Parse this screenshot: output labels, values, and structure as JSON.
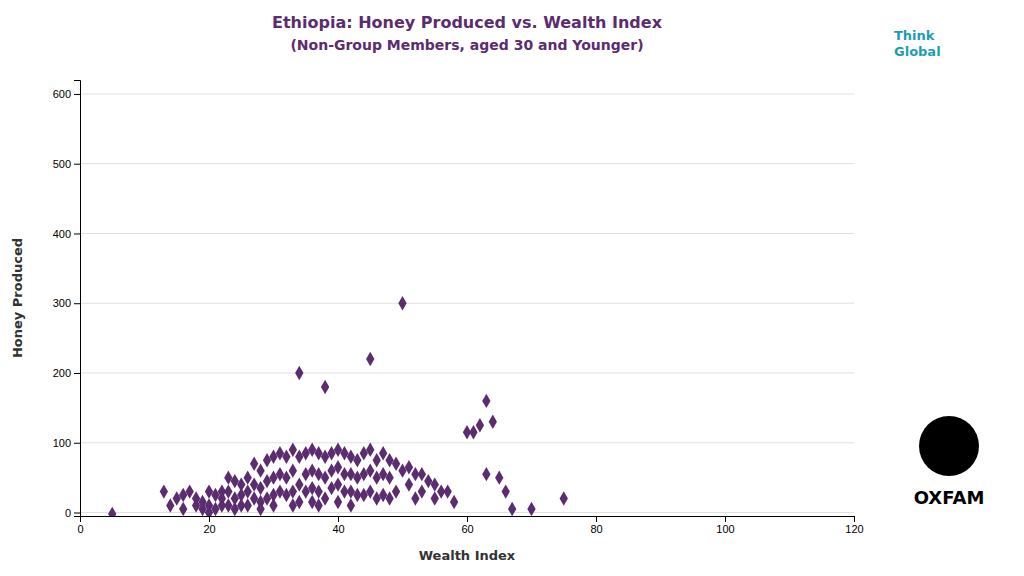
{
  "chart_data": {
    "type": "scatter",
    "title": "Ethiopia: Honey Produced vs. Wealth Index",
    "subtitle": "(Non-Group Members, aged 30 and Younger)",
    "x_label": "Wealth Index",
    "y_label": "Honey Produced",
    "annotations": [
      "Think\nGlobal",
      "OXFAM"
    ],
    "xlim": [
      0,
      120
    ],
    "ylim": [
      -5,
      620
    ],
    "xticks": [
      0,
      20,
      40,
      60,
      80,
      100,
      120
    ],
    "yticks": [
      0,
      100,
      200,
      300,
      400,
      500,
      600
    ],
    "grid": true,
    "color": "#5B2C6F",
    "marker": "diamond",
    "x": [
      5,
      13,
      14,
      15,
      16,
      16,
      17,
      18,
      18,
      19,
      19,
      20,
      20,
      20,
      21,
      21,
      22,
      22,
      22,
      23,
      23,
      23,
      24,
      24,
      24,
      25,
      25,
      25,
      26,
      26,
      26,
      27,
      27,
      27,
      28,
      28,
      28,
      28,
      29,
      29,
      29,
      30,
      30,
      30,
      30,
      31,
      31,
      31,
      32,
      32,
      32,
      33,
      33,
      33,
      33,
      34,
      34,
      34,
      34,
      35,
      35,
      35,
      36,
      36,
      36,
      36,
      37,
      37,
      37,
      37,
      38,
      38,
      38,
      38,
      39,
      39,
      39,
      40,
      40,
      40,
      40,
      41,
      41,
      41,
      42,
      42,
      42,
      42,
      43,
      43,
      43,
      44,
      44,
      44,
      45,
      45,
      45,
      45,
      46,
      46,
      46,
      47,
      47,
      47,
      48,
      48,
      48,
      49,
      49,
      50,
      50,
      51,
      51,
      52,
      52,
      53,
      53,
      54,
      55,
      55,
      56,
      57,
      58,
      60,
      61,
      62,
      63,
      63,
      64,
      65,
      66,
      67,
      70,
      75
    ],
    "values": [
      -2,
      30,
      10,
      20,
      25,
      5,
      30,
      10,
      20,
      15,
      5,
      30,
      10,
      0,
      25,
      5,
      30,
      10,
      20,
      50,
      30,
      10,
      45,
      20,
      5,
      40,
      25,
      10,
      50,
      30,
      10,
      70,
      40,
      20,
      60,
      35,
      15,
      5,
      75,
      45,
      20,
      80,
      50,
      25,
      10,
      85,
      55,
      30,
      80,
      50,
      25,
      90,
      60,
      30,
      10,
      200,
      80,
      40,
      15,
      85,
      55,
      30,
      90,
      60,
      35,
      15,
      85,
      55,
      30,
      10,
      180,
      80,
      50,
      20,
      85,
      60,
      35,
      90,
      65,
      40,
      15,
      85,
      55,
      30,
      80,
      55,
      30,
      10,
      75,
      50,
      25,
      85,
      55,
      25,
      220,
      90,
      60,
      30,
      75,
      50,
      20,
      85,
      55,
      25,
      75,
      50,
      20,
      70,
      30,
      300,
      60,
      65,
      40,
      55,
      20,
      55,
      30,
      45,
      40,
      20,
      30,
      30,
      15,
      115,
      115,
      125,
      160,
      55,
      130,
      50,
      30,
      5,
      5,
      20
    ]
  }
}
